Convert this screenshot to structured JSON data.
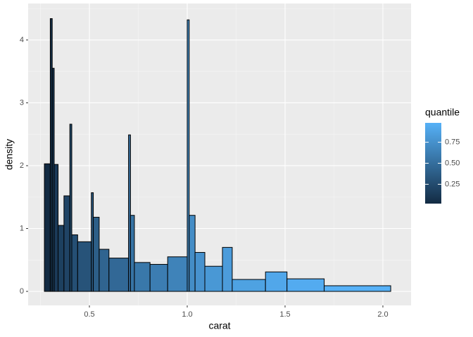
{
  "chart_data": {
    "type": "histogram",
    "x_label": "carat",
    "y_label": "density",
    "bins": [
      0.27,
      0.3,
      0.31,
      0.32,
      0.34,
      0.37,
      0.4,
      0.41,
      0.44,
      0.51,
      0.52,
      0.55,
      0.6,
      0.7,
      0.71,
      0.73,
      0.81,
      0.9,
      1.0,
      1.01,
      1.04,
      1.09,
      1.18,
      1.23,
      1.4,
      1.51,
      1.7,
      2.04
    ],
    "values": [
      2.03,
      4.34,
      3.55,
      2.02,
      1.05,
      1.52,
      2.66,
      0.9,
      0.79,
      1.57,
      1.18,
      0.67,
      0.53,
      2.49,
      1.21,
      0.46,
      0.43,
      0.55,
      4.32,
      1.21,
      0.62,
      0.4,
      0.7,
      0.19,
      0.31,
      0.2,
      0.09
    ],
    "fill_values": [
      0.02,
      0.06,
      0.09,
      0.13,
      0.17,
      0.2,
      0.24,
      0.28,
      0.31,
      0.35,
      0.39,
      0.43,
      0.46,
      0.5,
      0.54,
      0.57,
      0.61,
      0.65,
      0.69,
      0.72,
      0.76,
      0.8,
      0.83,
      0.87,
      0.91,
      0.94,
      0.98
    ],
    "xlim": [
      0.187,
      2.144
    ],
    "ylim": [
      -0.223,
      4.58
    ],
    "xticks": [
      0.5,
      {
        "value": 1.0,
        "label": "1.0"
      },
      1.5,
      {
        "value": 2.0,
        "label": "2.0"
      }
    ],
    "yticks": [
      0,
      1,
      2,
      3,
      4
    ],
    "grid": true,
    "legend": {
      "title": "quantile",
      "limits": [
        0.02,
        0.98
      ],
      "low_color": "#132B43",
      "high_color": "#56B1F7",
      "ticks": [
        0.25,
        {
          "value": 0.5,
          "label": "0.50"
        },
        0.75
      ]
    }
  }
}
